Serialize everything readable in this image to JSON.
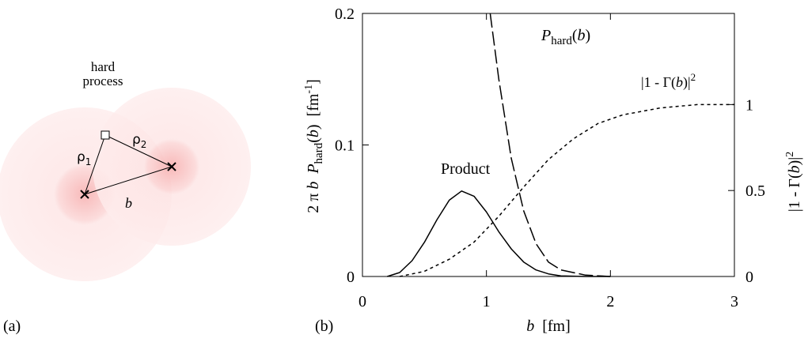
{
  "panel_labels": [
    "(a)",
    "(b)"
  ],
  "diagram": {
    "labels": {
      "top": "hard",
      "bottom": "process",
      "rho1": "ρ",
      "rho1_sub": "1",
      "rho2": "ρ",
      "rho2_sub": "2",
      "b": "b"
    }
  },
  "chart_data": {
    "type": "line",
    "x_label": [
      "b",
      "  [fm]"
    ],
    "y_label": [
      "2 π ",
      "b",
      "  P",
      "hard",
      "(",
      "b",
      ")  [fm",
      "-1",
      "]"
    ],
    "y2_label": [
      "|1 - Γ(",
      "b",
      ")|",
      "2"
    ],
    "xlim": [
      0,
      3
    ],
    "xticks": [
      0,
      1,
      2,
      3
    ],
    "ylim": [
      0,
      0.2
    ],
    "yticks": [
      0,
      0.1,
      0.2
    ],
    "y2lim": [
      0,
      1.53
    ],
    "y2ticks": [
      0,
      0.5,
      1
    ],
    "series": [
      {
        "name": [
          "Product"
        ],
        "color": "#000000",
        "dash": "none",
        "x": [
          0.2,
          0.3,
          0.4,
          0.5,
          0.6,
          0.7,
          0.8,
          0.9,
          1.0,
          1.1,
          1.2,
          1.3,
          1.4,
          1.5,
          1.6,
          1.8,
          2.0
        ],
        "values": [
          0,
          0.003,
          0.012,
          0.026,
          0.043,
          0.058,
          0.065,
          0.061,
          0.049,
          0.034,
          0.021,
          0.011,
          0.005,
          0.002,
          0.0005,
          0,
          0
        ]
      },
      {
        "name": [
          "P",
          "hard",
          "(",
          "b",
          ")"
        ],
        "color": "#000000",
        "dash": "18,5",
        "x": [
          1.03,
          1.1,
          1.2,
          1.3,
          1.4,
          1.5,
          1.6,
          1.8,
          2.0
        ],
        "values": [
          0.2,
          0.15,
          0.09,
          0.05,
          0.025,
          0.011,
          0.005,
          0.001,
          0
        ]
      },
      {
        "name": [
          "|1 - Γ(",
          "b",
          ")|",
          "2"
        ],
        "color": "#000000",
        "dash": "4,4",
        "axis": "y2",
        "x": [
          0.3,
          0.5,
          0.7,
          0.9,
          1.1,
          1.3,
          1.5,
          1.7,
          1.9,
          2.1,
          2.4,
          2.7,
          3.0
        ],
        "values": [
          0,
          0.03,
          0.1,
          0.2,
          0.35,
          0.52,
          0.68,
          0.8,
          0.89,
          0.94,
          0.98,
          1.0,
          1.0
        ]
      }
    ]
  }
}
